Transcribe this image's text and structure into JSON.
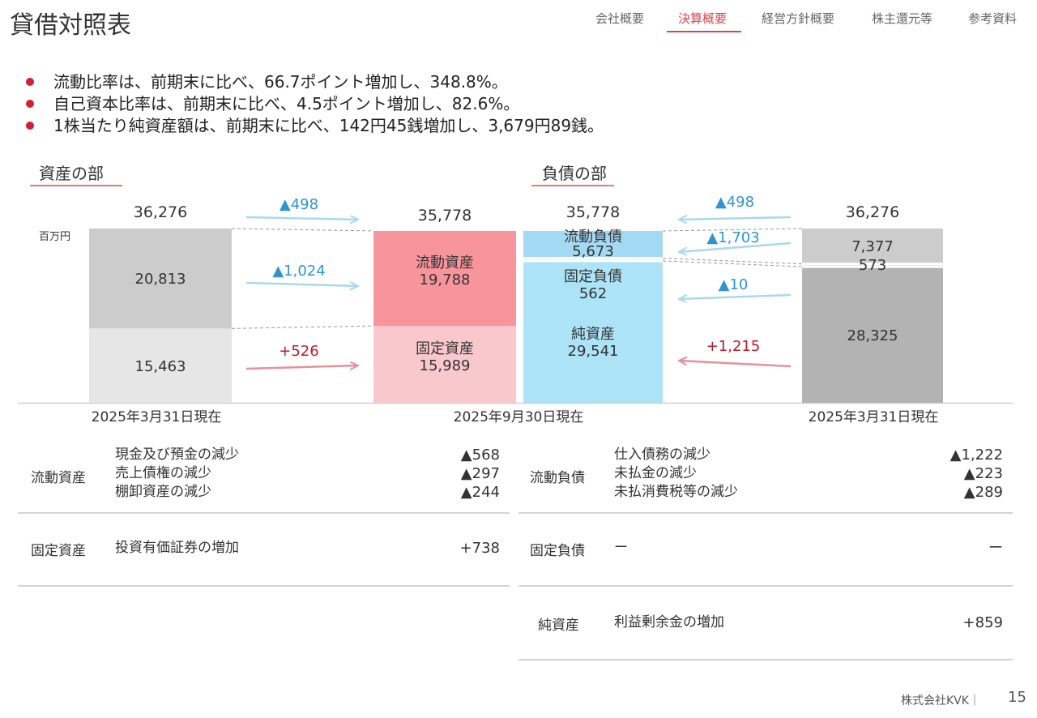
{
  "header": {
    "title": "貸借対照表",
    "nav": [
      "会社概要",
      "決算概要",
      "経営方針概要",
      "株主還元等",
      "参考資料"
    ],
    "active_index": 1
  },
  "bullets": [
    "流動比率は、前期末に比べ、66.7ポイント増加し、348.8%。",
    "自己資本比率は、前期末に比べ、4.5ポイント増加し、82.6%。",
    "1株当たり純資産額は、前期末に比べ、142円45銭増加し、3,679円89銭。"
  ],
  "sections": {
    "assets": "資産の部",
    "liabilities": "負債の部"
  },
  "colors": {
    "prev_current_assets": "#cccccc",
    "prev_fixed_assets": "#e6e6e6",
    "current_assets": "#f8959c",
    "fixed_assets": "#f9c8cc",
    "current_liabilities": "#a3d9f2",
    "fixed_liabilities": "#ace3f6",
    "net_assets": "#ace3f6",
    "prev_liabilities": "#cccccc",
    "prev_net_assets": "#b3b3b3",
    "decrease_arrow": "#a9d8ee",
    "increase_arrow": "#e8909a",
    "decrease_text": "#2e95cf",
    "increase_text": "#c0192a"
  },
  "chart_data": {
    "type": "bar",
    "unit": "百万円",
    "ylim": [
      0,
      36276
    ],
    "columns": [
      {
        "id": "assets_prev",
        "date": "2025年3月31日現在",
        "total": "36,276",
        "segments": [
          {
            "label": "",
            "value": 15463,
            "display": "15,463",
            "color_key": "prev_fixed_assets"
          },
          {
            "label": "",
            "value": 20813,
            "display": "20,813",
            "color_key": "prev_current_assets"
          }
        ]
      },
      {
        "id": "assets_curr",
        "date": "2025年9月30日現在",
        "total": "35,778",
        "segments": [
          {
            "label": "固定資産",
            "value": 15989,
            "display": "15,989",
            "color_key": "fixed_assets"
          },
          {
            "label": "流動資産",
            "value": 19788,
            "display": "19,788",
            "color_key": "current_assets"
          }
        ]
      },
      {
        "id": "liab_curr",
        "date": "",
        "total": "35,778",
        "segments": [
          {
            "label": "純資産",
            "value": 29541,
            "display": "29,541",
            "color_key": "net_assets"
          },
          {
            "label": "固定負債",
            "value": 562,
            "display": "562",
            "color_key": "fixed_liabilities"
          },
          {
            "label": "流動負債",
            "value": 5673,
            "display": "5,673",
            "color_key": "current_liabilities"
          }
        ]
      },
      {
        "id": "liab_prev",
        "date": "2025年3月31日現在",
        "total": "36,276",
        "segments": [
          {
            "label": "",
            "value": 28325,
            "display": "28,325",
            "color_key": "prev_net_assets"
          },
          {
            "label": "",
            "value": 573,
            "display": "573",
            "color_key": "prev_liabilities"
          },
          {
            "label": "",
            "value": 7377,
            "display": "7,377",
            "color_key": "prev_liabilities"
          }
        ]
      }
    ],
    "changes": [
      {
        "side": "assets",
        "target": "total",
        "text": "▲498",
        "direction": "decrease"
      },
      {
        "side": "assets",
        "target": "current",
        "text": "▲1,024",
        "direction": "decrease"
      },
      {
        "side": "assets",
        "target": "fixed",
        "text": "+526",
        "direction": "increase"
      },
      {
        "side": "liabilities",
        "target": "total",
        "text": "▲498",
        "direction": "decrease"
      },
      {
        "side": "liabilities",
        "target": "current",
        "text": "▲1,703",
        "direction": "decrease"
      },
      {
        "side": "liabilities",
        "target": "fixed",
        "text": "▲10",
        "direction": "decrease"
      },
      {
        "side": "liabilities",
        "target": "net",
        "text": "+1,215",
        "direction": "increase"
      }
    ]
  },
  "tables": {
    "left": [
      {
        "category": "流動資産",
        "items": [
          {
            "label": "現金及び預金の減少",
            "value": "▲568"
          },
          {
            "label": "売上債権の減少",
            "value": "▲297"
          },
          {
            "label": "棚卸資産の減少",
            "value": "▲244"
          }
        ]
      },
      {
        "category": "固定資産",
        "items": [
          {
            "label": "投資有価証券の増加",
            "value": "+738"
          }
        ]
      }
    ],
    "right": [
      {
        "category": "流動負債",
        "items": [
          {
            "label": "仕入債務の減少",
            "value": "▲1,222"
          },
          {
            "label": "未払金の減少",
            "value": "▲223"
          },
          {
            "label": "未払消費税等の減少",
            "value": "▲289"
          }
        ]
      },
      {
        "category": "固定負債",
        "items": [
          {
            "label": "ー",
            "value": "ー"
          }
        ]
      },
      {
        "category": "純資産",
        "items": [
          {
            "label": "利益剰余金の増加",
            "value": "+859"
          }
        ]
      }
    ]
  },
  "footer": {
    "company": "株式会社KVK｜",
    "page": "15"
  }
}
